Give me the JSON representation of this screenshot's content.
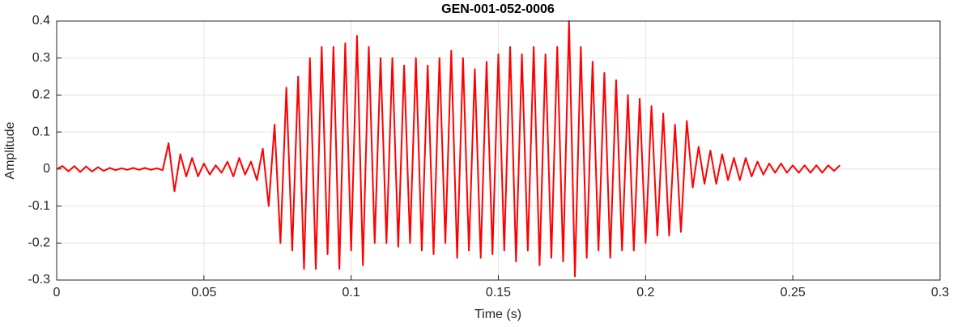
{
  "chart_data": {
    "type": "line",
    "title": "GEN-001-052-0006",
    "x_label": "Time (s)",
    "y_label": "Amplitude",
    "xlim": [
      0,
      0.3
    ],
    "ylim": [
      -0.3,
      0.4
    ],
    "xticks": [
      0,
      0.05,
      0.1,
      0.15,
      0.2,
      0.25,
      0.3
    ],
    "yticks": [
      -0.3,
      -0.2,
      -0.1,
      0,
      0.1,
      0.2,
      0.3,
      0.4
    ],
    "grid": true,
    "x": [
      0,
      0.002,
      0.004,
      0.006,
      0.008,
      0.01,
      0.012,
      0.014,
      0.016,
      0.018,
      0.02,
      0.022,
      0.024,
      0.026,
      0.028,
      0.03,
      0.032,
      0.034,
      0.036,
      0.038,
      0.04,
      0.042,
      0.044,
      0.046,
      0.048,
      0.05,
      0.052,
      0.054,
      0.056,
      0.058,
      0.06,
      0.062,
      0.064,
      0.066,
      0.068,
      0.07,
      0.072,
      0.074,
      0.076,
      0.078,
      0.08,
      0.082,
      0.084,
      0.086,
      0.088,
      0.09,
      0.092,
      0.094,
      0.096,
      0.098,
      0.1,
      0.102,
      0.104,
      0.106,
      0.108,
      0.11,
      0.112,
      0.114,
      0.116,
      0.118,
      0.12,
      0.122,
      0.124,
      0.126,
      0.128,
      0.13,
      0.132,
      0.134,
      0.136,
      0.138,
      0.14,
      0.142,
      0.144,
      0.146,
      0.148,
      0.15,
      0.152,
      0.154,
      0.156,
      0.158,
      0.16,
      0.162,
      0.164,
      0.166,
      0.168,
      0.17,
      0.172,
      0.174,
      0.176,
      0.178,
      0.18,
      0.182,
      0.184,
      0.186,
      0.188,
      0.19,
      0.192,
      0.194,
      0.196,
      0.198,
      0.2,
      0.202,
      0.204,
      0.206,
      0.208,
      0.21,
      0.212,
      0.214,
      0.216,
      0.218,
      0.22,
      0.222,
      0.224,
      0.226,
      0.228,
      0.23,
      0.232,
      0.234,
      0.236,
      0.238,
      0.24,
      0.242,
      0.244,
      0.246,
      0.248,
      0.25,
      0.252,
      0.254,
      0.256,
      0.258,
      0.26,
      0.262,
      0.264,
      0.266
    ],
    "series": [
      {
        "name": "Amplitude",
        "color": "#ff0000",
        "values": [
          0,
          0.008,
          -0.006,
          0.008,
          -0.008,
          0.007,
          -0.007,
          0.005,
          -0.005,
          0.003,
          -0.003,
          0.002,
          -0.002,
          0.003,
          -0.002,
          0.003,
          -0.002,
          0.002,
          -0.003,
          0.07,
          -0.06,
          0.04,
          -0.02,
          0.03,
          -0.02,
          0.015,
          -0.015,
          0.01,
          -0.01,
          0.02,
          -0.02,
          0.03,
          -0.015,
          0.02,
          -0.03,
          0.055,
          -0.1,
          0.12,
          -0.2,
          0.22,
          -0.22,
          0.25,
          -0.27,
          0.3,
          -0.27,
          0.33,
          -0.23,
          0.33,
          -0.27,
          0.34,
          -0.22,
          0.36,
          -0.26,
          0.33,
          -0.2,
          0.3,
          -0.2,
          0.3,
          -0.21,
          0.28,
          -0.2,
          0.3,
          -0.22,
          0.28,
          -0.23,
          0.3,
          -0.2,
          0.32,
          -0.24,
          0.3,
          -0.22,
          0.27,
          -0.24,
          0.29,
          -0.23,
          0.31,
          -0.22,
          0.33,
          -0.25,
          0.31,
          -0.22,
          0.33,
          -0.26,
          0.31,
          -0.24,
          0.33,
          -0.25,
          0.4,
          -0.29,
          0.33,
          -0.24,
          0.29,
          -0.22,
          0.26,
          -0.24,
          0.24,
          -0.22,
          0.2,
          -0.22,
          0.19,
          -0.2,
          0.17,
          -0.18,
          0.15,
          -0.18,
          0.12,
          -0.17,
          0.13,
          -0.05,
          0.06,
          -0.04,
          0.05,
          -0.04,
          0.04,
          -0.03,
          0.03,
          -0.03,
          0.03,
          -0.02,
          0.02,
          -0.015,
          0.015,
          -0.01,
          0.015,
          -0.01,
          0.01,
          -0.01,
          0.01,
          -0.01,
          0.01,
          -0.01,
          0.01,
          -0.005,
          0.01
        ]
      }
    ]
  }
}
